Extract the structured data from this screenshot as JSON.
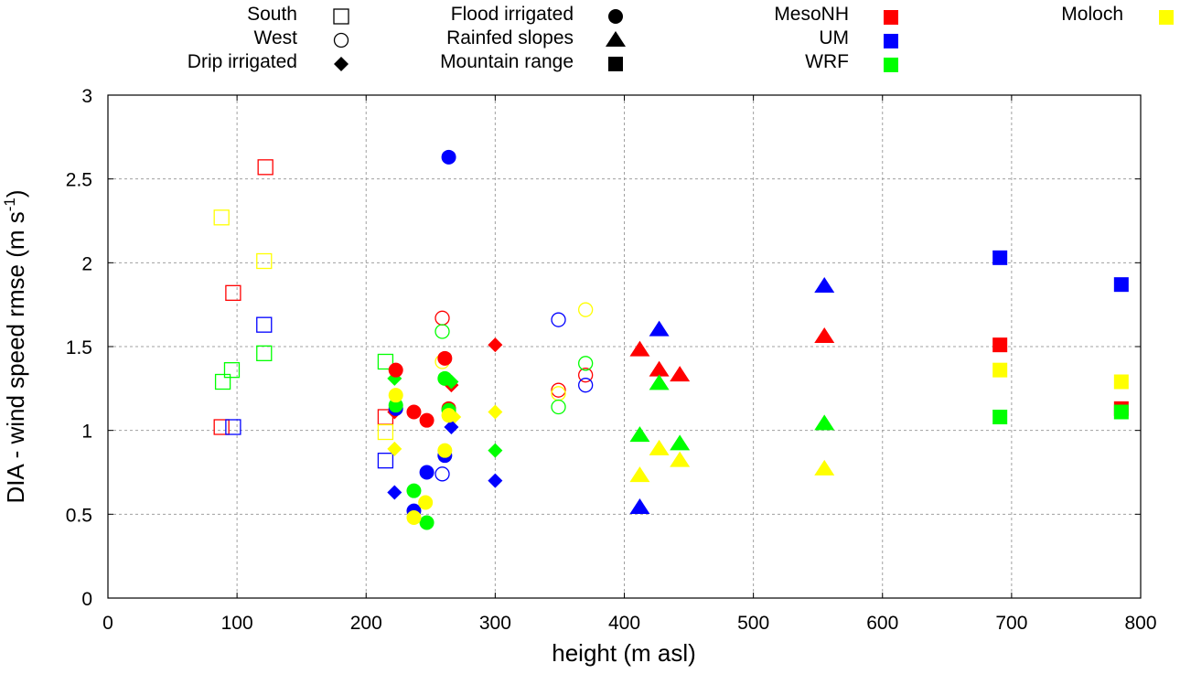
{
  "chart_data": {
    "type": "scatter",
    "title": "",
    "xlabel": "height (m asl)",
    "ylabel_main": "DIA - wind speed rmse (m s",
    "ylabel_sup": "-1",
    "ylabel_end": ")",
    "xlim": [
      0,
      800
    ],
    "ylim": [
      0,
      3
    ],
    "xticks": [
      0,
      100,
      200,
      300,
      400,
      500,
      600,
      700,
      800
    ],
    "yticks": [
      0,
      0.5,
      1,
      1.5,
      2,
      2.5,
      3
    ],
    "xtick_labels": [
      "0",
      "100",
      "200",
      "300",
      "400",
      "500",
      "600",
      "700",
      "800"
    ],
    "ytick_labels": [
      "0",
      "0.5",
      "1",
      "1.5",
      "2",
      "2.5",
      "3"
    ],
    "grid": true,
    "legend_placement": "top (outside plot)",
    "site_legend": [
      {
        "name": "South",
        "marker": "open-square"
      },
      {
        "name": "West",
        "marker": "open-circle"
      },
      {
        "name": "Drip irrigated",
        "marker": "diamond"
      },
      {
        "name": "Flood irrigated",
        "marker": "circle"
      },
      {
        "name": "Rainfed slopes",
        "marker": "triangle"
      },
      {
        "name": "Mountain range",
        "marker": "square"
      }
    ],
    "model_legend": [
      {
        "name": "MesoNH",
        "color": "#ff0000"
      },
      {
        "name": "UM",
        "color": "#0000ff"
      },
      {
        "name": "WRF",
        "color": "#00ff00"
      },
      {
        "name": "Moloch",
        "color": "#ffff00"
      }
    ],
    "series": [
      {
        "site": "South",
        "model": "MesoNH",
        "points": [
          [
            88,
            1.02
          ],
          [
            97,
            1.82
          ],
          [
            122,
            2.57
          ],
          [
            215,
            1.08
          ]
        ]
      },
      {
        "site": "South",
        "model": "Moloch",
        "points": [
          [
            88,
            2.27
          ],
          [
            121,
            2.01
          ],
          [
            215,
            0.99
          ]
        ]
      },
      {
        "site": "South",
        "model": "UM",
        "points": [
          [
            97,
            1.02
          ],
          [
            121,
            1.63
          ],
          [
            215,
            0.82
          ]
        ]
      },
      {
        "site": "South",
        "model": "WRF",
        "points": [
          [
            89,
            1.29
          ],
          [
            96,
            1.36
          ],
          [
            121,
            1.46
          ],
          [
            215,
            1.41
          ]
        ]
      },
      {
        "site": "West",
        "model": "MesoNH",
        "points": [
          [
            259,
            1.67
          ],
          [
            349,
            1.24
          ],
          [
            370,
            1.33
          ]
        ]
      },
      {
        "site": "West",
        "model": "Moloch",
        "points": [
          [
            259,
            1.41
          ],
          [
            349,
            1.22
          ],
          [
            370,
            1.72
          ]
        ]
      },
      {
        "site": "West",
        "model": "UM",
        "points": [
          [
            259,
            0.74
          ],
          [
            349,
            1.66
          ],
          [
            370,
            1.27
          ]
        ]
      },
      {
        "site": "West",
        "model": "WRF",
        "points": [
          [
            259,
            1.59
          ],
          [
            349,
            1.14
          ],
          [
            370,
            1.4
          ]
        ]
      },
      {
        "site": "Drip irrigated",
        "model": "MesoNH",
        "points": [
          [
            222,
            1.11
          ],
          [
            266,
            1.27
          ],
          [
            300,
            1.51
          ]
        ]
      },
      {
        "site": "Drip irrigated",
        "model": "Moloch",
        "points": [
          [
            222,
            0.89
          ],
          [
            268,
            1.08
          ],
          [
            300,
            1.11
          ]
        ]
      },
      {
        "site": "Drip irrigated",
        "model": "UM",
        "points": [
          [
            222,
            0.63
          ],
          [
            266,
            1.02
          ],
          [
            300,
            0.7
          ]
        ]
      },
      {
        "site": "Drip irrigated",
        "model": "WRF",
        "points": [
          [
            222,
            1.31
          ],
          [
            266,
            1.29
          ],
          [
            300,
            0.88
          ]
        ]
      },
      {
        "site": "Flood irrigated",
        "model": "MesoNH",
        "points": [
          [
            223,
            1.36
          ],
          [
            237,
            1.11
          ],
          [
            247,
            1.06
          ],
          [
            261,
            1.43
          ],
          [
            264,
            1.13
          ]
        ]
      },
      {
        "site": "Flood irrigated",
        "model": "UM",
        "points": [
          [
            223,
            1.13
          ],
          [
            237,
            0.52
          ],
          [
            247,
            0.75
          ],
          [
            261,
            0.85
          ],
          [
            264,
            2.63
          ]
        ]
      },
      {
        "site": "Flood irrigated",
        "model": "WRF",
        "points": [
          [
            223,
            1.15
          ],
          [
            237,
            0.64
          ],
          [
            247,
            0.45
          ],
          [
            261,
            1.31
          ],
          [
            264,
            1.12
          ]
        ]
      },
      {
        "site": "Flood irrigated",
        "model": "Moloch",
        "points": [
          [
            223,
            1.21
          ],
          [
            237,
            0.48
          ],
          [
            246,
            0.57
          ],
          [
            261,
            0.88
          ],
          [
            264,
            1.09
          ]
        ]
      },
      {
        "site": "Rainfed slopes",
        "model": "MesoNH",
        "points": [
          [
            412,
            1.48
          ],
          [
            427,
            1.36
          ],
          [
            443,
            1.33
          ],
          [
            555,
            1.56
          ]
        ]
      },
      {
        "site": "Rainfed slopes",
        "model": "UM",
        "points": [
          [
            412,
            0.54
          ],
          [
            427,
            1.6
          ],
          [
            555,
            1.86
          ]
        ]
      },
      {
        "site": "Rainfed slopes",
        "model": "WRF",
        "points": [
          [
            412,
            0.97
          ],
          [
            427,
            1.28
          ],
          [
            443,
            0.92
          ],
          [
            555,
            1.04
          ]
        ]
      },
      {
        "site": "Rainfed slopes",
        "model": "Moloch",
        "points": [
          [
            412,
            0.73
          ],
          [
            427,
            0.89
          ],
          [
            443,
            0.82
          ],
          [
            555,
            0.77
          ]
        ]
      },
      {
        "site": "Mountain range",
        "model": "MesoNH",
        "points": [
          [
            691,
            1.51
          ],
          [
            785,
            1.13
          ]
        ]
      },
      {
        "site": "Mountain range",
        "model": "UM",
        "points": [
          [
            691,
            2.03
          ],
          [
            785,
            1.87
          ]
        ]
      },
      {
        "site": "Mountain range",
        "model": "Moloch",
        "points": [
          [
            691,
            1.36
          ],
          [
            785,
            1.29
          ]
        ]
      },
      {
        "site": "Mountain range",
        "model": "WRF",
        "points": [
          [
            691,
            1.08
          ],
          [
            785,
            1.11
          ]
        ]
      }
    ]
  }
}
